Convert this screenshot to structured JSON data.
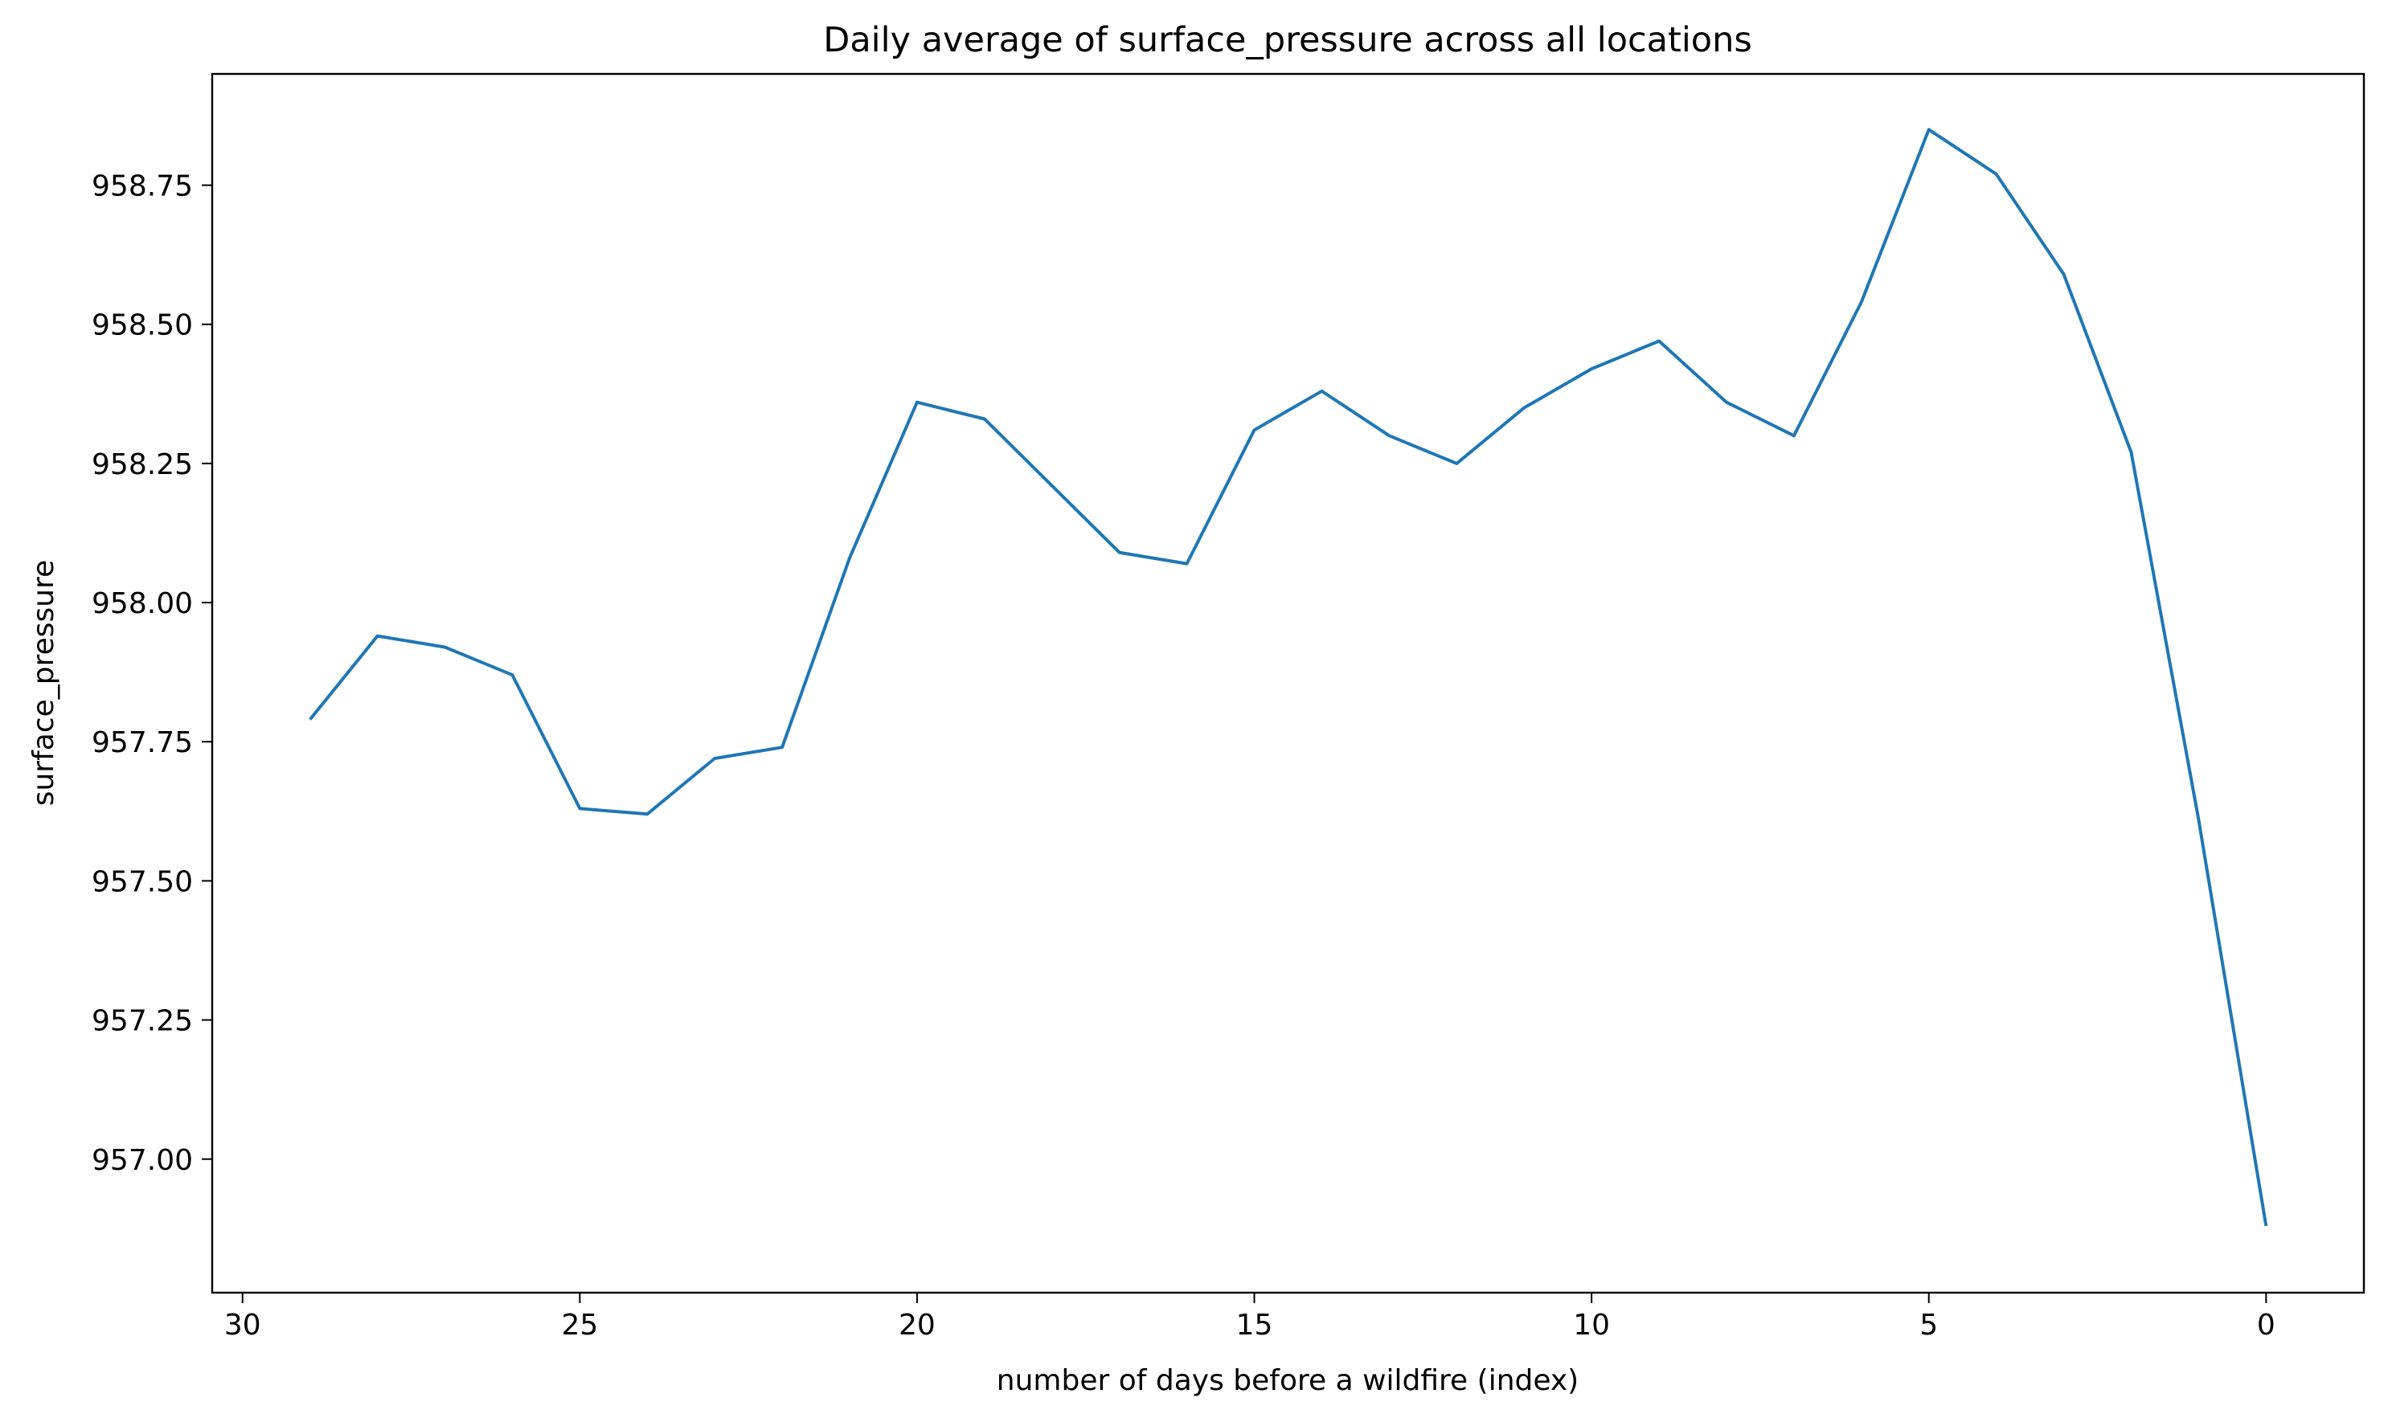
{
  "chart_data": {
    "type": "line",
    "title": "Daily average of surface_pressure across all locations",
    "xlabel": "number of days before a wildfire (index)",
    "ylabel": "surface_pressure",
    "x_reversed": true,
    "xlim": [
      30.45,
      -1.45
    ],
    "ylim": [
      956.76,
      958.95
    ],
    "xticks": [
      30,
      25,
      20,
      15,
      10,
      5,
      0
    ],
    "yticks": [
      957.0,
      957.25,
      957.5,
      957.75,
      958.0,
      958.25,
      958.5,
      958.75
    ],
    "ytick_labels": [
      "957.00",
      "957.25",
      "957.50",
      "957.75",
      "958.00",
      "958.25",
      "958.50",
      "958.75"
    ],
    "grid": false,
    "legend": false,
    "series": [
      {
        "color": "#1f77b4",
        "x": [
          29,
          28,
          27,
          26,
          25,
          24,
          23,
          22,
          21,
          20,
          19,
          18,
          17,
          16,
          15,
          14,
          13,
          12,
          11,
          10,
          9,
          8,
          7,
          6,
          5,
          4,
          3,
          2,
          1,
          0
        ],
        "y": [
          957.79,
          957.94,
          957.92,
          957.87,
          957.63,
          957.62,
          957.72,
          957.74,
          958.08,
          958.36,
          958.33,
          958.21,
          958.09,
          958.07,
          958.31,
          958.38,
          958.3,
          958.25,
          958.35,
          958.42,
          958.47,
          958.36,
          958.3,
          958.54,
          958.85,
          958.77,
          958.59,
          958.27,
          957.61,
          956.88
        ]
      }
    ]
  }
}
